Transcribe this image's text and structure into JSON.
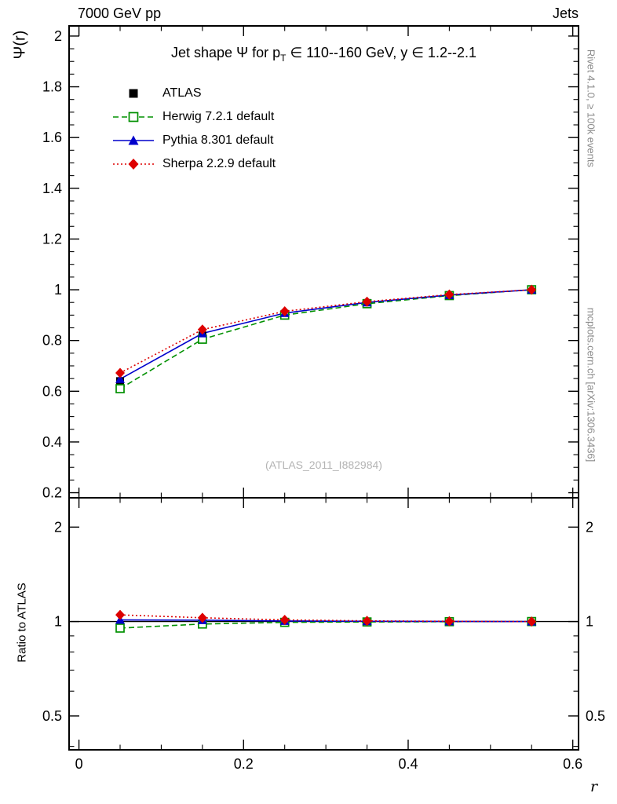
{
  "header": {
    "left": "7000 GeV pp",
    "right": "Jets"
  },
  "title": {
    "pre": "Jet shape Ψ for p",
    "sub": "T",
    "post": " ∈ 110--160 GeV, y ∈ 1.2--2.1"
  },
  "axes": {
    "y_main": "Ψ(r)",
    "y_ratio": "Ratio to ATLAS",
    "x": "r"
  },
  "watermark": "(ATLAS_2011_I882984)",
  "side_notes": {
    "top": "Rivet 4.1.0, ≥ 100k events",
    "bottom": "mcplots.cern.ch [arXiv:1306.3436]"
  },
  "chart_data": {
    "type": "line",
    "title": "Jet shape Ψ for p_T ∈ 110--160 GeV, y ∈ 1.2--2.1",
    "xlabel": "r",
    "ylabel": "Ψ(r)",
    "ratio_ylabel": "Ratio to ATLAS",
    "x": [
      0.05,
      0.15,
      0.25,
      0.35,
      0.45,
      0.55
    ],
    "xlim": [
      -0.012,
      0.607
    ],
    "ylim": [
      0.18,
      2.04
    ],
    "ratio_ylim": [
      0.39,
      2.48
    ],
    "ratio_yscale": "log",
    "x_ticks": [
      0,
      0.2,
      0.4,
      0.6
    ],
    "y_ticks": [
      0.2,
      0.4,
      0.6,
      0.8,
      1,
      1.2,
      1.4,
      1.6,
      1.8,
      2
    ],
    "ratio_ticks": [
      0.5,
      1,
      2
    ],
    "grid": false,
    "legend_position": "upper-left",
    "series": [
      {
        "name": "ATLAS",
        "color": "#000000",
        "marker": "square-filled",
        "line": "none",
        "values": [
          0.64,
          0.82,
          0.905,
          0.948,
          0.978,
          1.0
        ]
      },
      {
        "name": "Herwig 7.2.1 default",
        "color": "#009000",
        "marker": "square-open",
        "line": "dashed",
        "values": [
          0.61,
          0.805,
          0.9,
          0.945,
          0.977,
          1.0
        ],
        "ratio": [
          0.953,
          0.982,
          0.994,
          0.997,
          0.999,
          1.0
        ]
      },
      {
        "name": "Pythia 8.301 default",
        "color": "#0000cc",
        "marker": "triangle-filled",
        "line": "solid",
        "values": [
          0.648,
          0.828,
          0.908,
          0.95,
          0.979,
          1.0
        ],
        "ratio": [
          1.012,
          1.01,
          1.004,
          1.002,
          1.001,
          1.0
        ]
      },
      {
        "name": "Sherpa 2.2.9 default",
        "color": "#dd0000",
        "marker": "diamond-filled",
        "line": "dotted",
        "values": [
          0.672,
          0.843,
          0.915,
          0.953,
          0.981,
          1.0
        ],
        "ratio": [
          1.05,
          1.028,
          1.012,
          1.005,
          1.002,
          1.0
        ]
      }
    ]
  }
}
